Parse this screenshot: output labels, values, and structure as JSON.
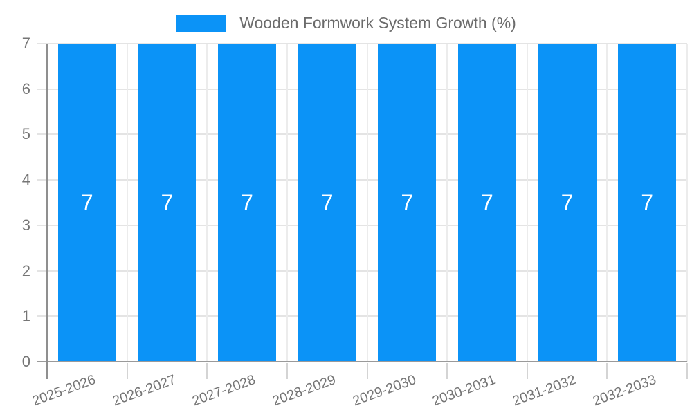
{
  "legend": {
    "position": "top"
  },
  "chart_data": {
    "type": "bar",
    "title": "Wooden Formwork System Growth (%)",
    "categories": [
      "2025-2026",
      "2026-2027",
      "2027-2028",
      "2028-2029",
      "2029-2030",
      "2030-2031",
      "2031-2032",
      "2032-2033"
    ],
    "series": [
      {
        "name": "Wooden Formwork System Growth (%)",
        "values": [
          7,
          7,
          7,
          7,
          7,
          7,
          7,
          7
        ],
        "color": "#0b93f7"
      }
    ],
    "xlabel": "",
    "ylabel": "",
    "ylim": [
      0,
      7
    ],
    "yticks": [
      0,
      1,
      2,
      3,
      4,
      5,
      6,
      7
    ],
    "grid": true,
    "legend_position": "top",
    "value_label_visible": true,
    "colors": {
      "bar": "#0b93f7",
      "bar_value_label": "#ffffff",
      "gridline": "#e4e4e4",
      "vertical_gridline": "#ececec",
      "axis_line": "#8f8f8f",
      "baseline": "#9a9a9a",
      "tick_below": "#d4d4d4",
      "axis_text": "#757575",
      "legend_text": "#6b6b6b"
    }
  }
}
